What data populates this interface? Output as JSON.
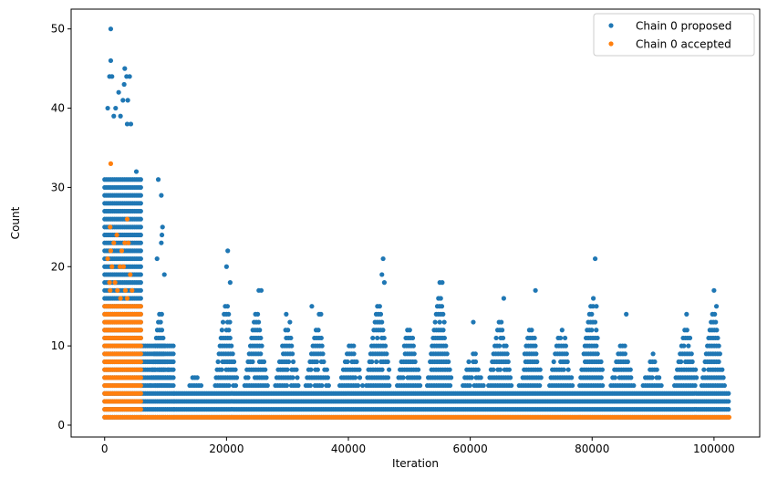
{
  "chart_data": {
    "type": "scatter",
    "title": "",
    "xlabel": "Iteration",
    "ylabel": "Count",
    "xlim": [
      -5500,
      107500
    ],
    "ylim": [
      -1.5,
      52.5
    ],
    "xticks": [
      0,
      20000,
      40000,
      60000,
      80000,
      100000
    ],
    "xtick_labels": [
      "0",
      "20000",
      "40000",
      "60000",
      "80000",
      "100000"
    ],
    "yticks": [
      0,
      10,
      20,
      30,
      40,
      50
    ],
    "ytick_labels": [
      "0",
      "10",
      "20",
      "30",
      "40",
      "50"
    ],
    "grid": false,
    "legend_position": "top-right",
    "series": [
      {
        "name": "Chain 0 proposed",
        "color": "#1f77b4",
        "marker": "circle",
        "bands": [
          {
            "x_start": 0,
            "x_end": 6000,
            "y_min": 1,
            "y_max": 31
          },
          {
            "x_start": 6000,
            "x_end": 11500,
            "y_min": 1,
            "y_max": 10
          },
          {
            "x_start": 11500,
            "x_end": 102500,
            "y_min": 1,
            "y_max": 4
          }
        ],
        "clusters": [
          {
            "x_center": 9200,
            "half_width": 1800,
            "y_top": 14
          },
          {
            "x_center": 15000,
            "half_width": 1500,
            "y_top": 6
          },
          {
            "x_center": 20000,
            "half_width": 2000,
            "y_top": 15
          },
          {
            "x_center": 25000,
            "half_width": 2200,
            "y_top": 14
          },
          {
            "x_center": 30000,
            "half_width": 2200,
            "y_top": 12
          },
          {
            "x_center": 35000,
            "half_width": 2200,
            "y_top": 12
          },
          {
            "x_center": 40500,
            "half_width": 2200,
            "y_top": 10
          },
          {
            "x_center": 45000,
            "half_width": 2200,
            "y_top": 15
          },
          {
            "x_center": 50000,
            "half_width": 2200,
            "y_top": 12
          },
          {
            "x_center": 55000,
            "half_width": 2200,
            "y_top": 16
          },
          {
            "x_center": 60500,
            "half_width": 2000,
            "y_top": 9
          },
          {
            "x_center": 65000,
            "half_width": 2200,
            "y_top": 13
          },
          {
            "x_center": 70000,
            "half_width": 2200,
            "y_top": 12
          },
          {
            "x_center": 75000,
            "half_width": 2200,
            "y_top": 12
          },
          {
            "x_center": 80000,
            "half_width": 2200,
            "y_top": 15
          },
          {
            "x_center": 85000,
            "half_width": 2200,
            "y_top": 10
          },
          {
            "x_center": 90000,
            "half_width": 2000,
            "y_top": 8
          },
          {
            "x_center": 95500,
            "half_width": 2200,
            "y_top": 12
          },
          {
            "x_center": 100000,
            "half_width": 2200,
            "y_top": 14
          }
        ],
        "outliers": [
          [
            1000,
            50
          ],
          [
            1000,
            46
          ],
          [
            800,
            44
          ],
          [
            1200,
            44
          ],
          [
            2300,
            42
          ],
          [
            3300,
            45
          ],
          [
            3600,
            44
          ],
          [
            3200,
            43
          ],
          [
            4100,
            44
          ],
          [
            3000,
            41
          ],
          [
            3800,
            41
          ],
          [
            500,
            40
          ],
          [
            1800,
            40
          ],
          [
            1500,
            39
          ],
          [
            2600,
            39
          ],
          [
            3700,
            38
          ],
          [
            4300,
            38
          ],
          [
            5200,
            32
          ],
          [
            8800,
            31
          ],
          [
            9300,
            29
          ],
          [
            9500,
            25
          ],
          [
            9400,
            24
          ],
          [
            9300,
            23
          ],
          [
            8600,
            21
          ],
          [
            9800,
            19
          ],
          [
            20200,
            22
          ],
          [
            20000,
            20
          ],
          [
            20600,
            18
          ],
          [
            25300,
            17
          ],
          [
            25700,
            17
          ],
          [
            29800,
            14
          ],
          [
            30400,
            13
          ],
          [
            34000,
            15
          ],
          [
            35200,
            14
          ],
          [
            35500,
            14
          ],
          [
            45700,
            21
          ],
          [
            45500,
            19
          ],
          [
            45900,
            18
          ],
          [
            55000,
            18
          ],
          [
            55400,
            18
          ],
          [
            60500,
            13
          ],
          [
            65500,
            16
          ],
          [
            70700,
            17
          ],
          [
            80500,
            21
          ],
          [
            80200,
            16
          ],
          [
            80700,
            15
          ],
          [
            85600,
            14
          ],
          [
            90000,
            9
          ],
          [
            95500,
            14
          ],
          [
            100000,
            17
          ],
          [
            100400,
            15
          ]
        ]
      },
      {
        "name": "Chain 0 accepted",
        "color": "#ff7f0e",
        "marker": "circle",
        "bands": [
          {
            "x_start": 0,
            "x_end": 6000,
            "y_min": 1,
            "y_max": 15
          },
          {
            "x_start": 6000,
            "x_end": 102500,
            "y_min": 1,
            "y_max": 1
          }
        ],
        "outliers": [
          [
            1000,
            33
          ],
          [
            900,
            25
          ],
          [
            3700,
            26
          ],
          [
            500,
            21
          ],
          [
            2000,
            24
          ],
          [
            1500,
            23
          ],
          [
            3300,
            23
          ],
          [
            3900,
            23
          ],
          [
            1000,
            22
          ],
          [
            2800,
            22
          ],
          [
            1200,
            20
          ],
          [
            2500,
            20
          ],
          [
            3100,
            20
          ],
          [
            4200,
            19
          ],
          [
            800,
            18
          ],
          [
            1700,
            18
          ],
          [
            2100,
            17
          ],
          [
            3400,
            17
          ],
          [
            4500,
            17
          ],
          [
            900,
            17
          ],
          [
            2600,
            16
          ],
          [
            3700,
            16
          ]
        ]
      }
    ]
  }
}
